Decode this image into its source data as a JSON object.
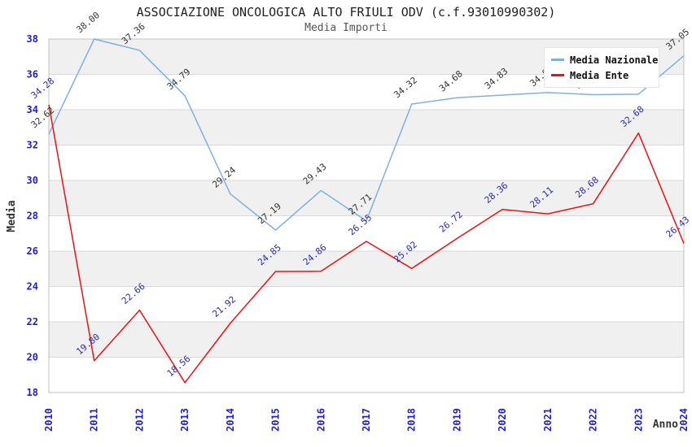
{
  "title": "ASSOCIAZIONE ONCOLOGICA ALTO FRIULI ODV (c.f.93010990302)",
  "subtitle": "Media Importi",
  "legend": {
    "items": [
      {
        "label": "Media Nazionale",
        "color": "#7fb0e2"
      },
      {
        "label": "Media Ente",
        "color": "#ee1111"
      }
    ]
  },
  "chart_data": {
    "type": "line",
    "x": [
      2010,
      2011,
      2012,
      2013,
      2014,
      2015,
      2016,
      2017,
      2018,
      2019,
      2020,
      2021,
      2022,
      2023,
      2024
    ],
    "series": [
      {
        "name": "Media Nazionale",
        "color": "#7fb0e2",
        "label_color": "#333333",
        "values": [
          32.62,
          38.0,
          37.36,
          34.79,
          29.24,
          27.19,
          29.43,
          27.71,
          34.32,
          34.68,
          34.83,
          34.97,
          34.85,
          34.88,
          37.05
        ],
        "point_labels": [
          "32.62",
          "38.00",
          "37.36",
          "34.79",
          "29.24",
          "27.19",
          "29.43",
          "27.71",
          "34.32",
          "34.68",
          "34.83",
          "34.97",
          "34.85",
          "34.88",
          "37.05"
        ]
      },
      {
        "name": "Media Ente",
        "color": "#ee1111",
        "label_color": "#2a2ab0",
        "values": [
          34.28,
          19.8,
          22.66,
          18.56,
          21.92,
          24.85,
          24.86,
          26.55,
          25.02,
          26.72,
          28.36,
          28.11,
          28.68,
          32.68,
          26.43
        ],
        "point_labels": [
          "34.28",
          "19.80",
          "22.66",
          "18.56",
          "21.92",
          "24.85",
          "24.86",
          "26.55",
          "25.02",
          "26.72",
          "28.36",
          "28.11",
          "28.68",
          "32.68",
          "26.43"
        ]
      }
    ],
    "title": "ASSOCIAZIONE ONCOLOGICA ALTO FRIULI ODV (c.f.93010990302)",
    "subtitle": "Media Importi",
    "xlabel": "Anno",
    "ylabel": "Media",
    "ylim": [
      18,
      38
    ],
    "ytick_step": 2,
    "yticks": [
      18,
      20,
      22,
      24,
      26,
      28,
      30,
      32,
      34,
      36,
      38
    ],
    "grid": true,
    "legend_position": "top-right",
    "tick_color": "#2020cc",
    "band_color": "#f0f0f0",
    "grid_color": "#d9d9d9",
    "border_color": "#c0c0c0"
  }
}
